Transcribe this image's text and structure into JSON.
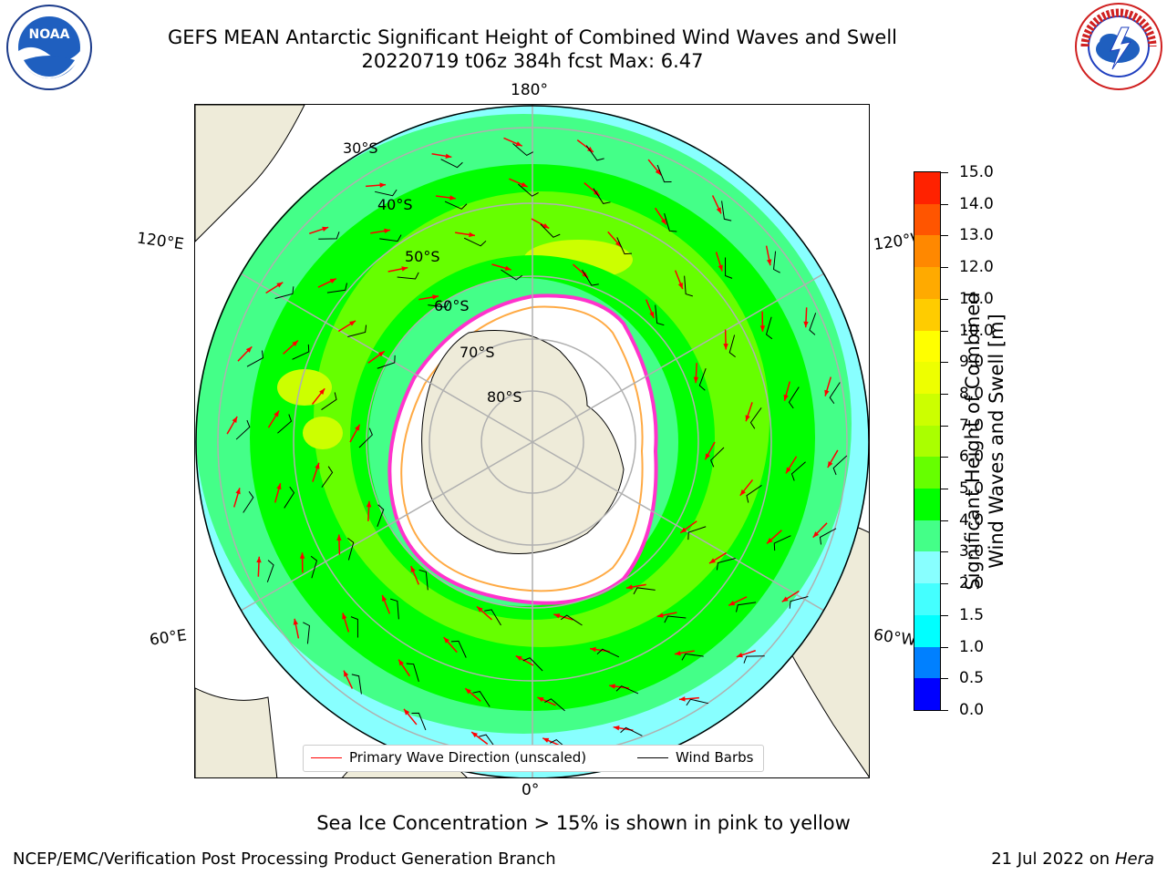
{
  "header": {
    "title_line1": "GEFS MEAN Antarctic Significant Height of Combined Wind Waves and Swell",
    "title_line2": "20220719 t06z 384h fcst   Max: 6.47"
  },
  "logos": {
    "noaa_text": "NOAA",
    "noaa_ring": "NATIONAL OCEANIC AND ATMOSPHERIC ADMINISTRATION · U.S. DEPARTMENT OF COMMERCE",
    "nws_ring": "NATIONAL WEATHER SERVICE"
  },
  "map": {
    "lon_labels": {
      "top": "180°",
      "bottom": "0°",
      "upper_left": "120°E",
      "upper_right": "120°W",
      "lower_left": "60°E",
      "lower_right": "60°W"
    },
    "lat_labels": [
      "30°S",
      "40°S",
      "50°S",
      "60°S",
      "70°S",
      "80°S"
    ],
    "legend": {
      "wave_direction": "Primary Wave Direction (unscaled)",
      "wind_barbs": "Wind Barbs"
    },
    "colors": {
      "land": "#eeebd9",
      "ocean_mask": "#ffffff",
      "grid": "#b0b0b0",
      "arrow": "#ff0000",
      "barb": "#000000",
      "ice_edge": "#ff33cc",
      "ice_inner": "#ffaa44"
    }
  },
  "colorbar": {
    "title_line1": "Significant Height of Combined",
    "title_line2": "Wind Waves and Swell [m]",
    "ticks": [
      "0.0",
      "0.5",
      "1.0",
      "1.5",
      "2.0",
      "3.0",
      "4.0",
      "5.0",
      "6.0",
      "7.0",
      "8.0",
      "9.0",
      "10.0",
      "11.0",
      "12.0",
      "13.0",
      "14.0",
      "15.0"
    ],
    "colors": [
      "#0000ff",
      "#0080ff",
      "#00ffff",
      "#44ffff",
      "#88ffff",
      "#44ff88",
      "#00ff00",
      "#66ff00",
      "#aaff00",
      "#ccff00",
      "#eeff00",
      "#ffff00",
      "#ffcc00",
      "#ffaa00",
      "#ff8800",
      "#ff5500",
      "#ff2200"
    ]
  },
  "footer": {
    "note": "Sea Ice Concentration > 15% is shown in pink to yellow",
    "left": "NCEP/EMC/Verification Post Processing Product Generation Branch",
    "right_date": "21 Jul 2022 on ",
    "right_machine": "Hera"
  }
}
